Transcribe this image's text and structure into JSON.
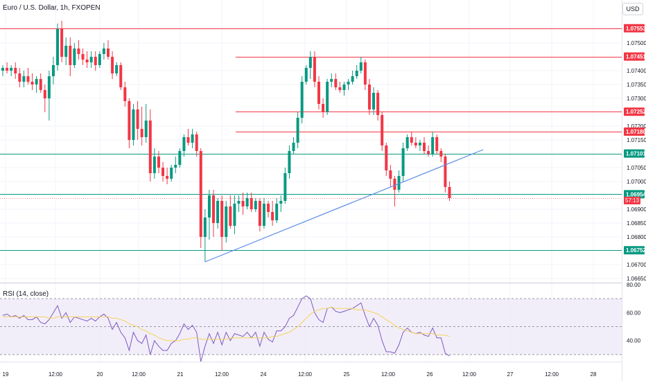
{
  "title": "Euro / U.S. Dollar, 1h, FXOPEN",
  "currency": "USD",
  "rsi_label": "RSI (14, close)",
  "colors": {
    "up": "#089981",
    "down": "#f23645",
    "support": "#089981",
    "resistance": "#f23645",
    "trendline": "#5b8be8",
    "rsi": "#7e57c2",
    "rsi_ma": "#f3d35a",
    "rsi_band": "#ede7f6",
    "grid": "#f0f3fa",
    "text": "#131722"
  },
  "chart_data": [
    {
      "type": "candlestick",
      "title": "Euro / U.S. Dollar, 1h, FXOPEN",
      "ylim": [
        1.0664,
        1.07655
      ],
      "y_ticks": [
        "1.06650",
        "1.06700",
        "1.06800",
        "1.06850",
        "1.06900",
        "1.07000",
        "1.07050",
        "1.07150",
        "1.07200",
        "1.07300",
        "1.07350",
        "1.07400",
        "1.07500"
      ],
      "x_ticks": [
        "19",
        "12:00",
        "20",
        "12:00",
        "21",
        "12:00",
        "24",
        "12:00",
        "25",
        "12:00",
        "26",
        "12:00",
        "27",
        "12:00",
        "28"
      ],
      "horizontal_levels": [
        {
          "label": "1.07553",
          "value": 1.07553,
          "kind": "resistance",
          "span": "full"
        },
        {
          "label": "1.07451",
          "value": 1.07451,
          "kind": "resistance",
          "span": "partial"
        },
        {
          "label": "1.07252",
          "value": 1.07252,
          "kind": "resistance",
          "span": "partial"
        },
        {
          "label": "1.07180",
          "value": 1.0718,
          "kind": "resistance",
          "span": "partial"
        },
        {
          "label": "1.07101",
          "value": 1.07101,
          "kind": "support",
          "span": "full"
        },
        {
          "label": "1.06954",
          "value": 1.06954,
          "kind": "support",
          "span": "full"
        },
        {
          "label": "1.06752",
          "value": 1.06752,
          "kind": "support",
          "span": "full"
        }
      ],
      "last_price": {
        "value": 1.0694,
        "label": "57:13"
      },
      "trendline": {
        "from": [
          48,
          1.0671
        ],
        "to": [
          114,
          1.07115
        ]
      },
      "ohlc": [
        [
          1.074,
          1.0742,
          1.0738,
          1.0741
        ],
        [
          1.0741,
          1.0743,
          1.0739,
          1.074
        ],
        [
          1.074,
          1.0742,
          1.0738,
          1.0741
        ],
        [
          1.0741,
          1.0743,
          1.0737,
          1.0739
        ],
        [
          1.0739,
          1.0741,
          1.0734,
          1.0736
        ],
        [
          1.0736,
          1.074,
          1.0734,
          1.0738
        ],
        [
          1.0738,
          1.0741,
          1.0735,
          1.0736
        ],
        [
          1.0736,
          1.0739,
          1.0733,
          1.0735
        ],
        [
          1.0735,
          1.0738,
          1.0732,
          1.0737
        ],
        [
          1.0737,
          1.0739,
          1.0732,
          1.0733
        ],
        [
          1.0733,
          1.0735,
          1.0725,
          1.073
        ],
        [
          1.073,
          1.074,
          1.0722,
          1.0738
        ],
        [
          1.0738,
          1.0745,
          1.0735,
          1.0742
        ],
        [
          1.0742,
          1.0757,
          1.074,
          1.0755
        ],
        [
          1.0755,
          1.0758,
          1.0743,
          1.0745
        ],
        [
          1.0745,
          1.0752,
          1.0742,
          1.0749
        ],
        [
          1.0749,
          1.0752,
          1.0738,
          1.0742
        ],
        [
          1.0742,
          1.075,
          1.0741,
          1.0748
        ],
        [
          1.0748,
          1.0751,
          1.0744,
          1.0746
        ],
        [
          1.0746,
          1.0748,
          1.0742,
          1.0744
        ],
        [
          1.0744,
          1.0747,
          1.0741,
          1.0743
        ],
        [
          1.0743,
          1.0747,
          1.0741,
          1.0745
        ],
        [
          1.0745,
          1.0747,
          1.074,
          1.0742
        ],
        [
          1.0742,
          1.0747,
          1.0741,
          1.0746
        ],
        [
          1.0746,
          1.075,
          1.0744,
          1.0748
        ],
        [
          1.0748,
          1.0751,
          1.0744,
          1.0745
        ],
        [
          1.0745,
          1.0747,
          1.0737,
          1.0739
        ],
        [
          1.0739,
          1.0743,
          1.0738,
          1.0742
        ],
        [
          1.0742,
          1.0743,
          1.0733,
          1.0734
        ],
        [
          1.0734,
          1.0736,
          1.0727,
          1.0729
        ],
        [
          1.0729,
          1.073,
          1.0712,
          1.0715
        ],
        [
          1.0715,
          1.0728,
          1.0713,
          1.0726
        ],
        [
          1.0726,
          1.0729,
          1.0715,
          1.0719
        ],
        [
          1.0719,
          1.0727,
          1.0713,
          1.0716
        ],
        [
          1.0716,
          1.0728,
          1.0714,
          1.0722
        ],
        [
          1.0722,
          1.0726,
          1.07,
          1.0703
        ],
        [
          1.0703,
          1.0712,
          1.0701,
          1.0709
        ],
        [
          1.0709,
          1.0711,
          1.0703,
          1.0705
        ],
        [
          1.0705,
          1.0707,
          1.07,
          1.0702
        ],
        [
          1.0702,
          1.0705,
          1.0699,
          1.0701
        ],
        [
          1.0701,
          1.0706,
          1.07,
          1.0705
        ],
        [
          1.0705,
          1.0709,
          1.0703,
          1.0706
        ],
        [
          1.0706,
          1.0712,
          1.0705,
          1.0711
        ],
        [
          1.0711,
          1.0717,
          1.0709,
          1.0716
        ],
        [
          1.0716,
          1.0719,
          1.0713,
          1.0714
        ],
        [
          1.0714,
          1.0719,
          1.0712,
          1.0717
        ],
        [
          1.0717,
          1.0718,
          1.0709,
          1.0711
        ],
        [
          1.0711,
          1.0712,
          1.0676,
          1.068
        ],
        [
          1.068,
          1.069,
          1.0671,
          1.0687
        ],
        [
          1.0687,
          1.0697,
          1.0679,
          1.0695
        ],
        [
          1.0695,
          1.0697,
          1.068,
          1.0685
        ],
        [
          1.0685,
          1.0694,
          1.0683,
          1.0693
        ],
        [
          1.0693,
          1.0695,
          1.0675,
          1.068
        ],
        [
          1.068,
          1.0693,
          1.0678,
          1.0691
        ],
        [
          1.0691,
          1.0695,
          1.0683,
          1.0684
        ],
        [
          1.0684,
          1.0695,
          1.0681,
          1.0692
        ],
        [
          1.0692,
          1.0695,
          1.0689,
          1.0693
        ],
        [
          1.0693,
          1.0696,
          1.0688,
          1.0691
        ],
        [
          1.0691,
          1.0696,
          1.069,
          1.0694
        ],
        [
          1.0694,
          1.0696,
          1.0689,
          1.069
        ],
        [
          1.069,
          1.0694,
          1.0689,
          1.0693
        ],
        [
          1.0693,
          1.0694,
          1.0682,
          1.0684
        ],
        [
          1.0684,
          1.0694,
          1.0683,
          1.0692
        ],
        [
          1.0692,
          1.0693,
          1.0687,
          1.0689
        ],
        [
          1.0689,
          1.0693,
          1.0684,
          1.0686
        ],
        [
          1.0686,
          1.0694,
          1.0685,
          1.0692
        ],
        [
          1.0692,
          1.0695,
          1.0689,
          1.0693
        ],
        [
          1.0693,
          1.0705,
          1.0692,
          1.0703
        ],
        [
          1.0703,
          1.0713,
          1.0701,
          1.0711
        ],
        [
          1.0711,
          1.0716,
          1.071,
          1.0714
        ],
        [
          1.0714,
          1.0725,
          1.0712,
          1.0723
        ],
        [
          1.0723,
          1.0738,
          1.0721,
          1.0736
        ],
        [
          1.0736,
          1.0742,
          1.0735,
          1.0741
        ],
        [
          1.0741,
          1.0747,
          1.0737,
          1.0745
        ],
        [
          1.0745,
          1.0747,
          1.0734,
          1.0736
        ],
        [
          1.0736,
          1.0738,
          1.0726,
          1.0728
        ],
        [
          1.0728,
          1.073,
          1.0723,
          1.0725
        ],
        [
          1.0725,
          1.0737,
          1.0724,
          1.0736
        ],
        [
          1.0736,
          1.0739,
          1.0734,
          1.0737
        ],
        [
          1.0737,
          1.0739,
          1.0733,
          1.0734
        ],
        [
          1.0734,
          1.0736,
          1.0732,
          1.0733
        ],
        [
          1.0733,
          1.0736,
          1.0731,
          1.0735
        ],
        [
          1.0735,
          1.0737,
          1.0733,
          1.0736
        ],
        [
          1.0736,
          1.074,
          1.0735,
          1.0738
        ],
        [
          1.0738,
          1.0742,
          1.0737,
          1.074
        ],
        [
          1.074,
          1.0745,
          1.0739,
          1.0743
        ],
        [
          1.0743,
          1.0744,
          1.0733,
          1.0735
        ],
        [
          1.0735,
          1.0737,
          1.0724,
          1.0726
        ],
        [
          1.0726,
          1.0734,
          1.0724,
          1.0732
        ],
        [
          1.0732,
          1.0733,
          1.0722,
          1.0724
        ],
        [
          1.0724,
          1.0725,
          1.0711,
          1.0713
        ],
        [
          1.0713,
          1.0714,
          1.0702,
          1.0704
        ],
        [
          1.0704,
          1.0706,
          1.0698,
          1.0701
        ],
        [
          1.0701,
          1.0702,
          1.0691,
          1.0697
        ],
        [
          1.0697,
          1.0704,
          1.0696,
          1.0702
        ],
        [
          1.0702,
          1.0714,
          1.07,
          1.0712
        ],
        [
          1.0712,
          1.0717,
          1.0711,
          1.0716
        ],
        [
          1.0716,
          1.0718,
          1.0713,
          1.0714
        ],
        [
          1.0714,
          1.0716,
          1.0712,
          1.0713
        ],
        [
          1.0713,
          1.0715,
          1.0711,
          1.0714
        ],
        [
          1.0714,
          1.0716,
          1.071,
          1.0711
        ],
        [
          1.0711,
          1.0713,
          1.0709,
          1.071
        ],
        [
          1.071,
          1.0718,
          1.0709,
          1.0716
        ],
        [
          1.0716,
          1.0717,
          1.071,
          1.0711
        ],
        [
          1.0711,
          1.0712,
          1.0707,
          1.0709
        ],
        [
          1.0709,
          1.071,
          1.0696,
          1.0698
        ],
        [
          1.0698,
          1.07,
          1.0693,
          1.0694
        ]
      ]
    },
    {
      "type": "line",
      "title": "RSI (14, close)",
      "ylim": [
        25,
        80
      ],
      "y_ticks": [
        "40.00",
        "60.00",
        "80.00"
      ],
      "band": [
        30,
        70
      ],
      "midline": 50,
      "series": [
        {
          "name": "RSI",
          "values": [
            58,
            59,
            57,
            58,
            56,
            58,
            55,
            55,
            57,
            53,
            52,
            55,
            60,
            65,
            56,
            60,
            53,
            57,
            56,
            55,
            54,
            56,
            54,
            57,
            59,
            56,
            48,
            53,
            46,
            42,
            33,
            46,
            40,
            38,
            44,
            30,
            40,
            36,
            33,
            33,
            38,
            40,
            45,
            52,
            48,
            51,
            46,
            25,
            36,
            45,
            38,
            46,
            37,
            46,
            40,
            45,
            44,
            43,
            46,
            42,
            46,
            36,
            46,
            41,
            39,
            47,
            47,
            50,
            56,
            58,
            64,
            70,
            72,
            70,
            60,
            55,
            53,
            63,
            64,
            61,
            60,
            61,
            62,
            63,
            65,
            67,
            58,
            50,
            56,
            51,
            40,
            32,
            32,
            31,
            37,
            46,
            49,
            46,
            45,
            46,
            44,
            43,
            49,
            42,
            42,
            31,
            29
          ]
        },
        {
          "name": "RSI-based MA",
          "values": [
            57,
            57,
            57,
            57,
            57,
            57,
            57,
            57,
            57,
            57,
            57,
            56,
            56,
            57,
            57,
            57,
            57,
            57,
            57,
            57,
            57,
            57,
            57,
            57,
            57,
            57,
            56,
            56,
            55,
            54,
            52,
            51,
            50,
            48,
            47,
            45,
            44,
            42,
            41,
            40,
            40,
            40,
            40,
            41,
            41,
            42,
            42,
            41,
            41,
            41,
            41,
            41,
            41,
            41,
            42,
            42,
            42,
            42,
            42,
            42,
            42,
            42,
            42,
            42,
            43,
            43,
            44,
            45,
            46,
            48,
            50,
            53,
            56,
            59,
            61,
            62,
            63,
            63,
            64,
            63,
            63,
            63,
            63,
            63,
            62,
            62,
            62,
            61,
            60,
            59,
            57,
            55,
            53,
            51,
            49,
            48,
            47,
            46,
            45,
            45,
            45,
            45,
            45,
            44,
            44,
            44,
            43
          ]
        }
      ]
    }
  ]
}
